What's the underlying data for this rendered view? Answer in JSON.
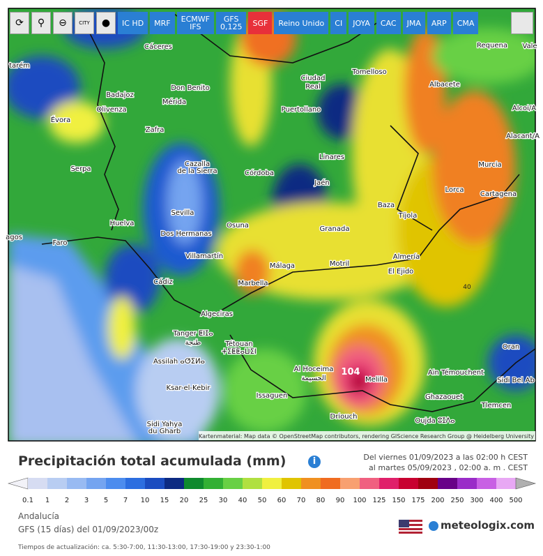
{
  "toolbar": {
    "buttons": [
      "IC HD",
      "MRF",
      "ECMWF\nIFS",
      "GFS\n0,125",
      "SGF",
      "Reino Unido",
      "CI",
      "JOYA",
      "CAC",
      "JMA",
      "ARP",
      "CMA"
    ],
    "city_icon": "CITY"
  },
  "map": {
    "cities": [
      "Cáceres",
      "tarém",
      "Badajoz",
      "Don Benito",
      "Mérida",
      "Olivenza",
      "Évora",
      "Zafra",
      "Ciudad",
      "Real",
      "Tomelloso",
      "Puertollano",
      "Albacete",
      "Requena",
      "Vale",
      "Alcoi/A",
      "Alacant/A",
      "Murcia",
      "Lorca",
      "Cartagena",
      "Linares",
      "Jaén",
      "Córdoba",
      "Cazalla",
      "de la Sierra",
      "Serpa",
      "Sevilla",
      "Dos Hermanas",
      "Huelva",
      "Faro",
      "agos",
      "Osuna",
      "Granada",
      "Baza",
      "Tíjola",
      "Almería",
      "El Ejido",
      "Motril",
      "Málaga",
      "Marbella",
      "Villamartín",
      "Cádiz",
      "Algeciras",
      "Tanger ⵟⵏⵊⴰ",
      "طنجة",
      "Tétouan",
      "ⵜⵉⵟⵟⴰⵡⵉⵏ",
      "Assilah ⴰⵚⵉⵍⴰ",
      "Ksar-el-Kebir",
      "Sidi Yahya",
      "du Gharb",
      "Al Hoceima",
      "الحسيمة",
      "Issaguen",
      "Driouch",
      "Melilla",
      "Ain Témouchent",
      "Ghazaouet",
      "Oujda ⵓⵊⴷⴰ",
      "Tlemcen",
      "Sidi Bel Ab",
      "Oran"
    ],
    "annotations": [
      "104",
      "40"
    ],
    "attribution": "Kartenmaterial: Map data © OpenStreetMap contributors, rendering GIScience Research Group @ Heidelberg University"
  },
  "header": {
    "title": "Precipitación total acumulada (mm)",
    "date_from": "Del viernes 01/09/2023 a  las 02:00 h  CEST",
    "date_to": "al martes 05/09/2023 ,  02:00 a. m . CEST"
  },
  "legend": {
    "labels": [
      "0.1",
      "1",
      "2",
      "3",
      "5",
      "7",
      "10",
      "15",
      "20",
      "25",
      "30",
      "40",
      "50",
      "60",
      "70",
      "80",
      "90",
      "100",
      "125",
      "150",
      "175",
      "200",
      "250",
      "300",
      "400",
      "500"
    ],
    "colors": [
      "#d6dcf2",
      "#b8cdf2",
      "#98baf2",
      "#74a4f0",
      "#4c8cee",
      "#2c6ee0",
      "#1a4cc0",
      "#0c2a82",
      "#0e8a2e",
      "#32b034",
      "#68d044",
      "#b0e040",
      "#f0f040",
      "#e0c400",
      "#f09020",
      "#f06c20",
      "#f8a070",
      "#f06080",
      "#e0206a",
      "#c80030",
      "#a00010",
      "#680088",
      "#9a2cc8",
      "#c860e4",
      "#e8a8f4"
    ]
  },
  "info": {
    "region": "Andalucía",
    "model": "GFS (15 días) del 01/09/2023/00z",
    "update": "Tiempos de actualización: ca. 5:30-7:00, 11:30-13:00, 17:30-19:00 y 23:30-1:00"
  },
  "brand": "meteologix.com"
}
